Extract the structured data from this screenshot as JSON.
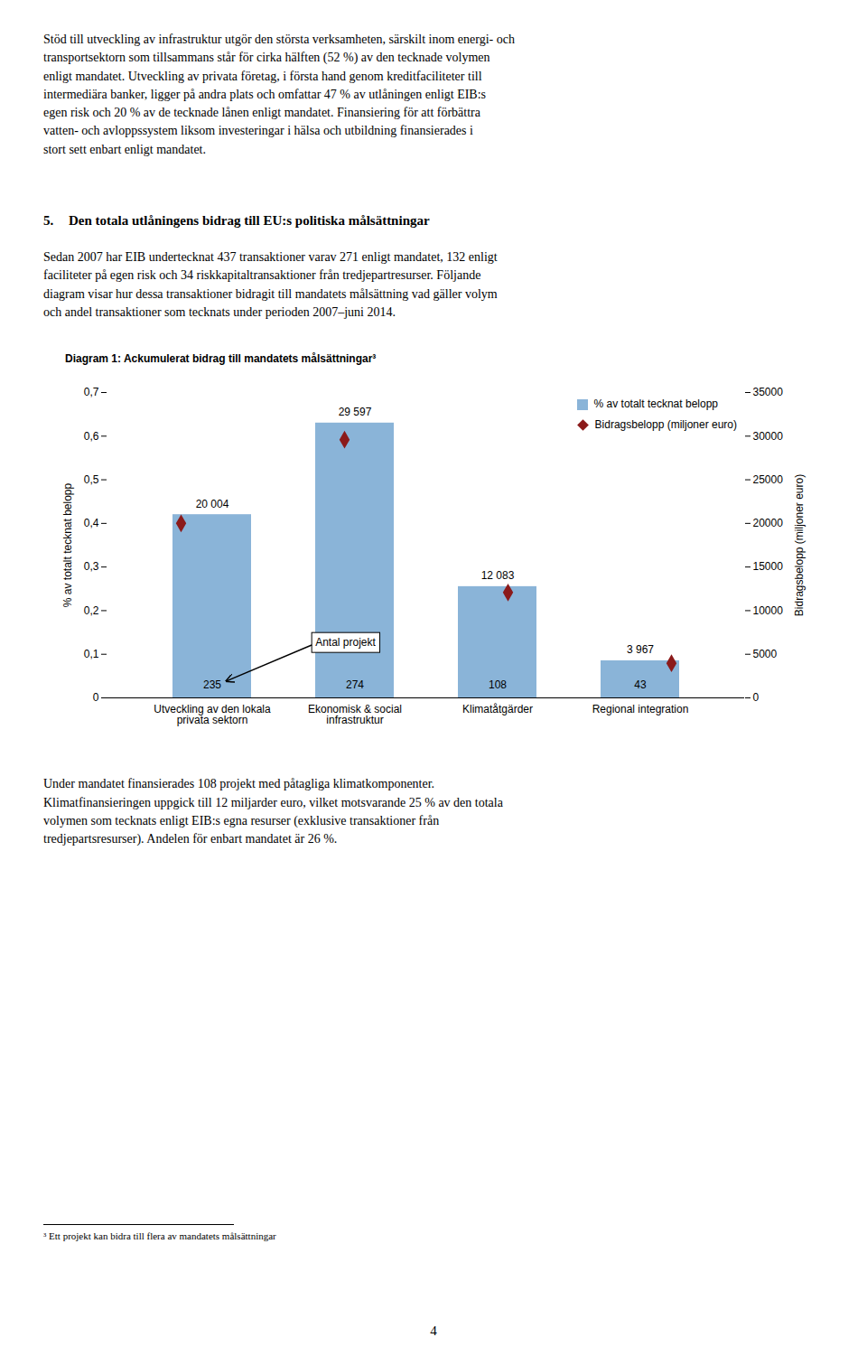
{
  "chart_data": {
    "type": "bar",
    "title": "Diagram 1: Ackumulerat bidrag till mandatets målsättningar³",
    "categories": [
      "Utveckling av den lokala\nprivata sektorn",
      "Ekonomisk & social\ninfrastruktur",
      "Klimatåtgärder",
      "Regional integration"
    ],
    "series": [
      {
        "name": "% av totalt tecknat belopp",
        "type": "bar",
        "color": "#8ab4d8",
        "values": [
          0.42,
          0.63,
          0.255,
          0.085
        ],
        "project_counts": [
          235,
          274,
          108,
          43
        ]
      },
      {
        "name": "Bidragsbelopp (miljoner euro)",
        "type": "scatter",
        "marker": "diamond",
        "color": "#8b1a1a",
        "axis": "y2",
        "values": [
          20004,
          29597,
          12083,
          3967
        ],
        "value_labels": [
          "20 004",
          "29 597",
          "12 083",
          "3 967"
        ],
        "data_labels": true
      }
    ],
    "ylabel": "% av totalt tecknat belopp",
    "y2label": "Bidragsbelopp (miljoner euro)",
    "ylim": [
      0,
      0.7
    ],
    "yticks": [
      0,
      {
        "value": 0.1,
        "label": "0,1"
      },
      {
        "value": 0.2,
        "label": "0,2"
      },
      {
        "value": 0.3,
        "label": "0,3"
      },
      {
        "value": 0.4,
        "label": "0,4"
      },
      {
        "value": 0.5,
        "label": "0,5"
      },
      {
        "value": 0.6,
        "label": "0,6"
      },
      {
        "value": 0.7,
        "label": "0,7"
      }
    ],
    "y2lim": [
      0,
      35000
    ],
    "y2ticks": [
      0,
      5000,
      10000,
      15000,
      20000,
      25000,
      30000,
      35000
    ],
    "legend": "upper right",
    "annotations": [
      "Antal projekt"
    ]
  },
  "page": {
    "para1": "Stöd till utveckling av infrastruktur utgör den största verksamheten, särskilt inom energi- och\ntransportsektorn som tillsammans står för cirka hälften (52 %) av den tecknade volymen\nenligt mandatet. Utveckling av privata företag, i första hand genom kreditfaciliteter till\nintermediära banker, ligger på andra plats och omfattar 47 % av utlåningen enligt EIB:s\negen risk och 20 % av de tecknade lånen enligt mandatet. Finansiering för att förbättra\nvatten- och avloppssystem liksom investeringar i hälsa och utbildning finansierades i\nstort sett enbart enligt mandatet.",
    "heading_num": "5.",
    "heading_text": "Den totala utlåningens bidrag till EU:s politiska målsättningar",
    "para2": "Sedan 2007 har EIB undertecknat 437 transaktioner varav 271 enligt mandatet, 132 enligt\nfaciliteter på egen risk och 34 riskkapitaltransaktioner från tredjepartresurser. Följande\ndiagram visar hur dessa transaktioner bidragit till mandatets målsättning vad gäller volym\noch andel transaktioner som tecknats under perioden 2007–juni 2014.",
    "para3": "Under mandatet finansierades 108 projekt med påtagliga klimatkomponenter.\nKlimatfinansieringen uppgick till 12 miljarder euro, vilket motsvarande 25 % av den totala\nvolymen som tecknats enligt EIB:s egna resurser (exklusive transaktioner från\ntredjepartsresurser). Andelen för enbart mandatet är 26 %.",
    "footnote": "³ Ett projekt kan bidra till flera av mandatets målsättningar",
    "page_number": "4"
  }
}
